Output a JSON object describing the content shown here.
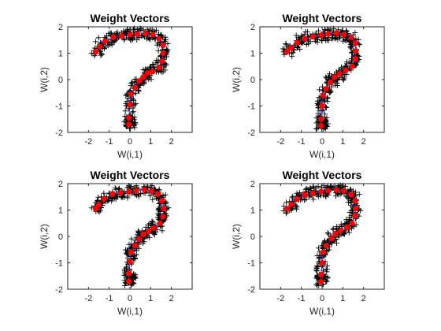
{
  "chart_data": [
    {
      "type": "scatter",
      "title": "Weight Vectors",
      "xlabel": "W(i,1)",
      "ylabel": "W(i,2)",
      "xlim": [
        -3,
        3
      ],
      "ylim": [
        -2,
        2
      ],
      "xticks": [
        "-2",
        "-1",
        "0",
        "1",
        "2"
      ],
      "yticks": [
        "-2",
        "-1",
        "0",
        "1",
        "2"
      ],
      "grid": false,
      "legend": "none",
      "colors": {
        "inputs": "#000000",
        "weights": "#ff0000",
        "links": "#3030ff"
      },
      "weights": [
        [
          -0.05,
          -1.7
        ],
        [
          -0.05,
          -1.45
        ],
        [
          0.0,
          -0.95
        ],
        [
          0.05,
          -0.55
        ],
        [
          0.25,
          -0.3
        ],
        [
          0.45,
          -0.05
        ],
        [
          0.65,
          0.1
        ],
        [
          0.85,
          0.25
        ],
        [
          1.1,
          0.3
        ],
        [
          1.4,
          0.45
        ],
        [
          1.55,
          0.7
        ],
        [
          1.6,
          1.0
        ],
        [
          1.6,
          1.3
        ],
        [
          1.4,
          1.55
        ],
        [
          1.1,
          1.7
        ],
        [
          0.75,
          1.75
        ],
        [
          0.35,
          1.72
        ],
        [
          0.0,
          1.7
        ],
        [
          -0.4,
          1.65
        ],
        [
          -0.8,
          1.6
        ],
        [
          -1.2,
          1.45
        ],
        [
          -1.45,
          1.25
        ],
        [
          -1.65,
          1.05
        ]
      ]
    },
    {
      "type": "scatter",
      "title": "Weight Vectors",
      "xlabel": "W(i,1)",
      "ylabel": "W(i,2)",
      "xlim": [
        -3,
        3
      ],
      "ylim": [
        -2,
        2
      ],
      "xticks": [
        "-2",
        "-1",
        "0",
        "1",
        "2"
      ],
      "yticks": [
        "-2",
        "-1",
        "0",
        "1",
        "2"
      ],
      "grid": false,
      "legend": "none",
      "colors": {
        "inputs": "#000000",
        "weights": "#ff0000",
        "links": "#3030ff"
      },
      "weights": [
        [
          -0.05,
          -1.75
        ],
        [
          -0.05,
          -1.5
        ],
        [
          0.0,
          -1.0
        ],
        [
          0.05,
          -0.6
        ],
        [
          0.2,
          -0.35
        ],
        [
          0.4,
          -0.1
        ],
        [
          0.6,
          0.1
        ],
        [
          0.85,
          0.22
        ],
        [
          1.15,
          0.35
        ],
        [
          1.45,
          0.5
        ],
        [
          1.6,
          0.78
        ],
        [
          1.62,
          1.08
        ],
        [
          1.6,
          1.38
        ],
        [
          1.4,
          1.6
        ],
        [
          1.05,
          1.7
        ],
        [
          0.7,
          1.76
        ],
        [
          0.3,
          1.72
        ],
        [
          -0.05,
          1.68
        ],
        [
          -0.45,
          1.62
        ],
        [
          -0.85,
          1.55
        ],
        [
          -1.2,
          1.4
        ],
        [
          -1.5,
          1.2
        ],
        [
          -1.7,
          1.05
        ]
      ]
    },
    {
      "type": "scatter",
      "title": "Weight Vectors",
      "xlabel": "W(i,1)",
      "ylabel": "W(i,2)",
      "xlim": [
        -3,
        3
      ],
      "ylim": [
        -2,
        2
      ],
      "xticks": [
        "-2",
        "-1",
        "0",
        "1",
        "2"
      ],
      "yticks": [
        "-2",
        "-1",
        "0",
        "1",
        "2"
      ],
      "grid": false,
      "legend": "none",
      "colors": {
        "inputs": "#000000",
        "weights": "#ff0000",
        "links": "#3030ff"
      },
      "weights": [
        [
          -0.05,
          -1.7
        ],
        [
          -0.05,
          -1.4
        ],
        [
          0.0,
          -0.95
        ],
        [
          0.05,
          -0.6
        ],
        [
          0.25,
          -0.35
        ],
        [
          0.45,
          -0.1
        ],
        [
          0.65,
          0.08
        ],
        [
          0.9,
          0.2
        ],
        [
          1.15,
          0.32
        ],
        [
          1.45,
          0.5
        ],
        [
          1.6,
          0.75
        ],
        [
          1.62,
          1.05
        ],
        [
          1.55,
          1.35
        ],
        [
          1.35,
          1.6
        ],
        [
          1.05,
          1.72
        ],
        [
          0.7,
          1.77
        ],
        [
          0.3,
          1.73
        ],
        [
          -0.05,
          1.7
        ],
        [
          -0.45,
          1.65
        ],
        [
          -0.85,
          1.6
        ],
        [
          -1.25,
          1.42
        ],
        [
          -1.5,
          1.2
        ],
        [
          -1.65,
          1.05
        ]
      ]
    },
    {
      "type": "scatter",
      "title": "Weight Vectors",
      "xlabel": "W(i,1)",
      "ylabel": "W(i,2)",
      "xlim": [
        -3,
        3
      ],
      "ylim": [
        -2,
        2
      ],
      "xticks": [
        "-2",
        "-1",
        "0",
        "1",
        "2"
      ],
      "yticks": [
        "-2",
        "-1",
        "0",
        "1",
        "2"
      ],
      "grid": false,
      "legend": "none",
      "colors": {
        "inputs": "#000000",
        "weights": "#ff0000",
        "links": "#3030ff"
      },
      "weights": [
        [
          -0.05,
          -1.72
        ],
        [
          -0.05,
          -1.45
        ],
        [
          0.0,
          -1.0
        ],
        [
          0.05,
          -0.6
        ],
        [
          0.2,
          -0.35
        ],
        [
          0.45,
          -0.08
        ],
        [
          0.65,
          0.1
        ],
        [
          0.9,
          0.22
        ],
        [
          1.2,
          0.35
        ],
        [
          1.45,
          0.5
        ],
        [
          1.58,
          0.78
        ],
        [
          1.62,
          1.05
        ],
        [
          1.6,
          1.35
        ],
        [
          1.4,
          1.58
        ],
        [
          1.05,
          1.72
        ],
        [
          0.7,
          1.76
        ],
        [
          0.3,
          1.73
        ],
        [
          -0.05,
          1.7
        ],
        [
          -0.45,
          1.63
        ],
        [
          -0.85,
          1.58
        ],
        [
          -1.2,
          1.42
        ],
        [
          -1.48,
          1.22
        ],
        [
          -1.68,
          1.05
        ]
      ]
    }
  ]
}
